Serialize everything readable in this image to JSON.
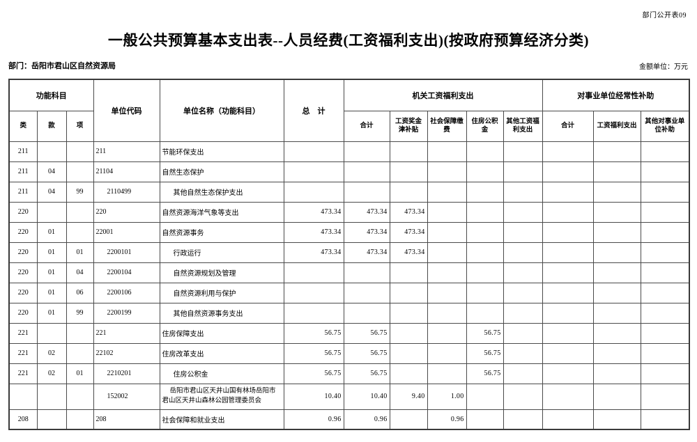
{
  "meta": {
    "doc_label": "部门公开表09",
    "title": "一般公共预算基本支出表--人员经费(工资福利支出)(按政府预算经济分类)",
    "department": "部门：岳阳市君山区自然资源局",
    "unit_note": "金额单位：万元"
  },
  "table": {
    "header": {
      "function_group": "功能科目",
      "lei": "类",
      "kuan": "款",
      "xiang": "项",
      "unit_code": "单位代码",
      "unit_name": "单位名称（功能科目）",
      "total": "总　计",
      "group1": "机关工资福利支出",
      "group1_cols": [
        "合计",
        "工资奖金津补贴",
        "社会保障缴费",
        "住房公积金",
        "其他工资福利支出"
      ],
      "group2": "对事业单位经常性补助",
      "group2_cols": [
        "合计",
        "工资福利支出",
        "其他对事业单位补助"
      ]
    },
    "rows": [
      {
        "lei": "211",
        "kuan": "",
        "xiang": "",
        "code": "211",
        "name": "节能环保支出",
        "total": "",
        "g1": [
          "",
          "",
          "",
          "",
          ""
        ],
        "g2": [
          "",
          "",
          ""
        ],
        "indent": false,
        "tall": false
      },
      {
        "lei": "211",
        "kuan": "04",
        "xiang": "",
        "code": "21104",
        "name": "自然生态保护",
        "total": "",
        "g1": [
          "",
          "",
          "",
          "",
          ""
        ],
        "g2": [
          "",
          "",
          ""
        ],
        "indent": false,
        "tall": false
      },
      {
        "lei": "211",
        "kuan": "04",
        "xiang": "99",
        "code": "2110499",
        "name": "其他自然生态保护支出",
        "total": "",
        "g1": [
          "",
          "",
          "",
          "",
          ""
        ],
        "g2": [
          "",
          "",
          ""
        ],
        "indent": true,
        "tall": false
      },
      {
        "lei": "220",
        "kuan": "",
        "xiang": "",
        "code": "220",
        "name": "自然资源海洋气象等支出",
        "total": "473.34",
        "g1": [
          "473.34",
          "473.34",
          "",
          "",
          ""
        ],
        "g2": [
          "",
          "",
          ""
        ],
        "indent": false,
        "tall": false
      },
      {
        "lei": "220",
        "kuan": "01",
        "xiang": "",
        "code": "22001",
        "name": "自然资源事务",
        "total": "473.34",
        "g1": [
          "473.34",
          "473.34",
          "",
          "",
          ""
        ],
        "g2": [
          "",
          "",
          ""
        ],
        "indent": false,
        "tall": false
      },
      {
        "lei": "220",
        "kuan": "01",
        "xiang": "01",
        "code": "2200101",
        "name": "行政运行",
        "total": "473.34",
        "g1": [
          "473.34",
          "473.34",
          "",
          "",
          ""
        ],
        "g2": [
          "",
          "",
          ""
        ],
        "indent": true,
        "tall": false
      },
      {
        "lei": "220",
        "kuan": "01",
        "xiang": "04",
        "code": "2200104",
        "name": "自然资源规划及管理",
        "total": "",
        "g1": [
          "",
          "",
          "",
          "",
          ""
        ],
        "g2": [
          "",
          "",
          ""
        ],
        "indent": true,
        "tall": false
      },
      {
        "lei": "220",
        "kuan": "01",
        "xiang": "06",
        "code": "2200106",
        "name": "自然资源利用与保护",
        "total": "",
        "g1": [
          "",
          "",
          "",
          "",
          ""
        ],
        "g2": [
          "",
          "",
          ""
        ],
        "indent": true,
        "tall": false
      },
      {
        "lei": "220",
        "kuan": "01",
        "xiang": "99",
        "code": "2200199",
        "name": "其他自然资源事务支出",
        "total": "",
        "g1": [
          "",
          "",
          "",
          "",
          ""
        ],
        "g2": [
          "",
          "",
          ""
        ],
        "indent": true,
        "tall": false
      },
      {
        "lei": "221",
        "kuan": "",
        "xiang": "",
        "code": "221",
        "name": "住房保障支出",
        "total": "56.75",
        "g1": [
          "56.75",
          "",
          "",
          "56.75",
          ""
        ],
        "g2": [
          "",
          "",
          ""
        ],
        "indent": false,
        "tall": false
      },
      {
        "lei": "221",
        "kuan": "02",
        "xiang": "",
        "code": "22102",
        "name": "住房改革支出",
        "total": "56.75",
        "g1": [
          "56.75",
          "",
          "",
          "56.75",
          ""
        ],
        "g2": [
          "",
          "",
          ""
        ],
        "indent": false,
        "tall": false
      },
      {
        "lei": "221",
        "kuan": "02",
        "xiang": "01",
        "code": "2210201",
        "name": "住房公积金",
        "total": "56.75",
        "g1": [
          "56.75",
          "",
          "",
          "56.75",
          ""
        ],
        "g2": [
          "",
          "",
          ""
        ],
        "indent": true,
        "tall": false
      },
      {
        "lei": "",
        "kuan": "",
        "xiang": "",
        "code": "152002",
        "name": "岳阳市君山区天井山国有林场岳阳市君山区天井山森林公园管理委员会",
        "total": "10.40",
        "g1": [
          "10.40",
          "9.40",
          "1.00",
          "",
          ""
        ],
        "g2": [
          "",
          "",
          ""
        ],
        "indent": true,
        "tall": true
      },
      {
        "lei": "208",
        "kuan": "",
        "xiang": "",
        "code": "208",
        "name": "社会保障和就业支出",
        "total": "0.96",
        "g1": [
          "0.96",
          "",
          "0.96",
          "",
          ""
        ],
        "g2": [
          "",
          "",
          ""
        ],
        "indent": false,
        "tall": false
      }
    ]
  }
}
